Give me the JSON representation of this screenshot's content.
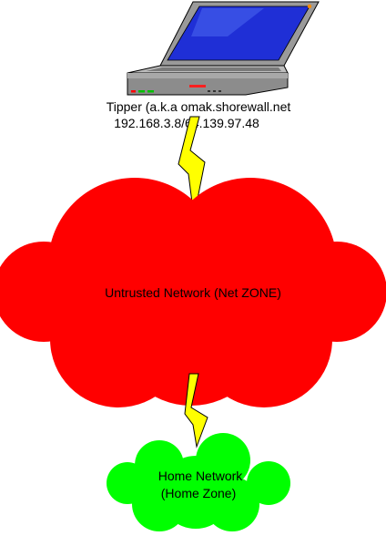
{
  "laptop": {
    "name_label": "Tipper (a.k.a omak.shorewall.net",
    "address_label": "192.168.3.8/64.139.97.48"
  },
  "untrusted_network": {
    "label": "Untrusted Network (Net ZONE)",
    "fill_color": "#ff0000"
  },
  "home_network": {
    "label_line1": "Home Network",
    "label_line2": "(Home Zone)",
    "fill_color": "#00ff00"
  },
  "links": {
    "bolt_color": "#ffff00"
  }
}
